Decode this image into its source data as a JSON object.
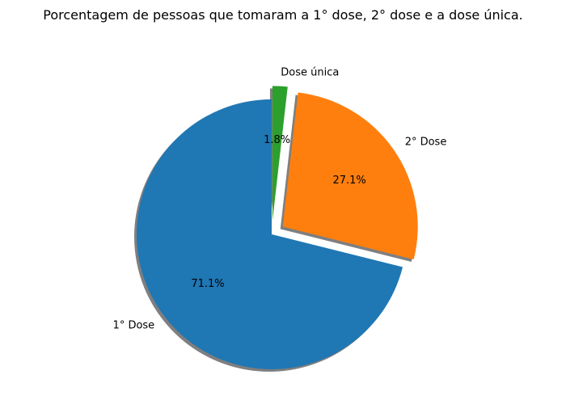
{
  "chart_data": {
    "type": "pie",
    "title": "Porcentagem de pessoas que tomaram a 1° dose, 2° dose e a dose única.",
    "startangle_deg": 90,
    "direction": "counterclockwise",
    "shadow": true,
    "slices": [
      {
        "label": "1° Dose",
        "value": 71.1,
        "pct_label": "71.1%",
        "color": "#1f77b4",
        "explode": 0.0
      },
      {
        "label": "2° Dose",
        "value": 27.1,
        "pct_label": "27.1%",
        "color": "#ff7f0e",
        "explode": 0.1
      },
      {
        "label": "Dose única",
        "value": 1.8,
        "pct_label": "1.8%",
        "color": "#2ca02c",
        "explode": 0.1
      }
    ]
  }
}
